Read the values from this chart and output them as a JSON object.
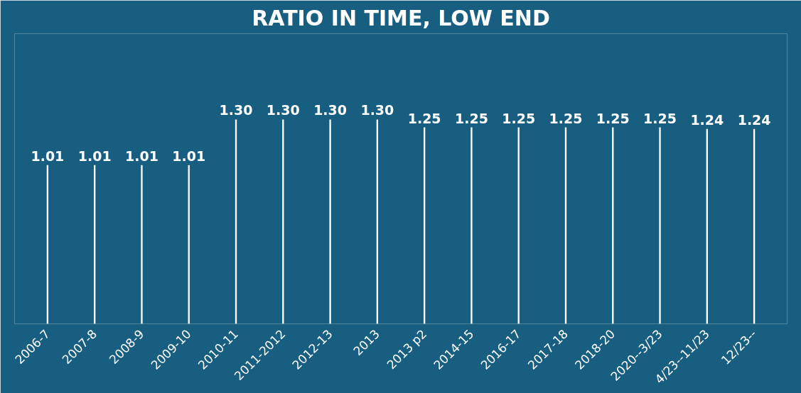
{
  "chart_data": {
    "type": "bar",
    "title": "RATIO IN TIME, LOW END",
    "categories": [
      "2006-7",
      "2007-8",
      "2008-9",
      "2009-10",
      "2010-11",
      "2011-2012",
      "2012-13",
      "2013",
      "2013 p2",
      "2014-15",
      "2016-17",
      "2017-18",
      "2018-20",
      "2020--3/23",
      "4/23--11/23",
      "12/23--"
    ],
    "values": [
      1.01,
      1.01,
      1.01,
      1.01,
      1.3,
      1.3,
      1.3,
      1.3,
      1.25,
      1.25,
      1.25,
      1.25,
      1.25,
      1.25,
      1.24,
      1.24
    ],
    "value_labels": [
      "1.01",
      "1.01",
      "1.01",
      "1.01",
      "1.30",
      "1.30",
      "1.30",
      "1.30",
      "1.25",
      "1.25",
      "1.25",
      "1.25",
      "1.25",
      "1.25",
      "1.24",
      "1.24"
    ],
    "color": "#ffffff"
  }
}
